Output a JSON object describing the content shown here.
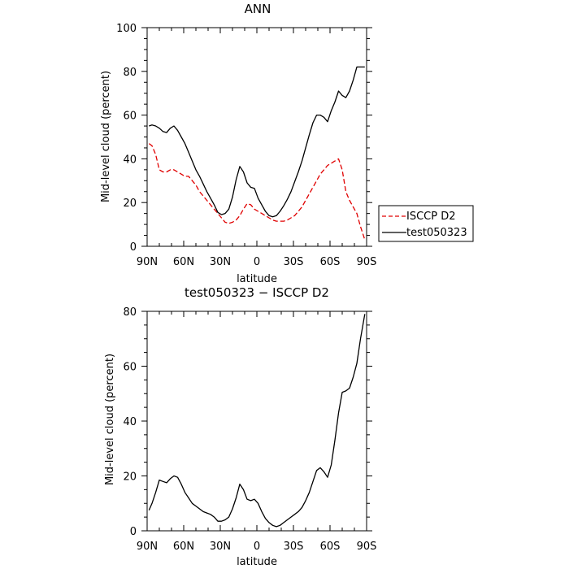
{
  "chart_data": [
    {
      "type": "line",
      "title": "ANN",
      "xlabel": "latitude",
      "ylabel": "Mid-level cloud (percent)",
      "xlim": [
        90,
        -90
      ],
      "ylim": [
        0,
        100
      ],
      "x_ticks": [
        90,
        60,
        30,
        0,
        -30,
        -60,
        -90
      ],
      "x_tick_labels": [
        "90N",
        "60N",
        "30N",
        "0",
        "30S",
        "60S",
        "90S"
      ],
      "y_ticks": [
        0,
        20,
        40,
        60,
        80,
        100
      ],
      "y_tick_labels": [
        "0",
        "20",
        "40",
        "60",
        "80",
        "100"
      ],
      "legend": "right",
      "series": [
        {
          "name": "ISCCP D2",
          "color": "#e00000",
          "dashed": true,
          "x": [
            88.5,
            86,
            83,
            80,
            77,
            74,
            71,
            68,
            65,
            62,
            59,
            56,
            53,
            50,
            47,
            44,
            41,
            38,
            35,
            32,
            29,
            26,
            23,
            20,
            17,
            14,
            11,
            8,
            5,
            2,
            -1,
            -4,
            -7,
            -10,
            -13,
            -16,
            -19,
            -22,
            -25,
            -28,
            -31,
            -34,
            -37,
            -40,
            -43,
            -46,
            -49,
            -52,
            -55,
            -58,
            -61,
            -64,
            -67,
            -70,
            -73,
            -76,
            -79,
            -82,
            -85,
            -88.5
          ],
          "y": [
            47,
            46,
            42,
            35,
            34,
            34,
            35,
            35,
            34,
            33,
            32,
            32,
            30,
            28,
            25,
            23,
            21,
            19,
            17,
            15,
            13,
            11,
            10.5,
            11,
            12,
            14,
            17,
            19.5,
            19,
            17,
            16,
            15,
            14,
            13,
            12,
            11.5,
            11.5,
            11.5,
            12,
            13,
            14,
            16,
            18,
            21,
            24,
            27,
            30,
            33,
            35,
            37,
            38,
            39,
            40,
            35,
            25,
            21,
            18,
            15,
            9,
            3
          ]
        },
        {
          "name": "test050323",
          "color": "#000000",
          "dashed": false,
          "x": [
            88.5,
            86,
            83,
            80,
            77,
            74,
            71,
            68,
            65,
            62,
            59,
            56,
            53,
            50,
            47,
            44,
            41,
            38,
            35,
            32,
            29,
            26,
            23,
            20,
            17,
            14,
            11,
            8,
            5,
            2,
            -1,
            -4,
            -7,
            -10,
            -13,
            -16,
            -19,
            -22,
            -25,
            -28,
            -31,
            -34,
            -37,
            -40,
            -43,
            -46,
            -49,
            -52,
            -55,
            -58,
            -61,
            -64,
            -67,
            -70,
            -73,
            -76,
            -79,
            -82,
            -85,
            -88.5
          ],
          "y": [
            55,
            55.5,
            55,
            54,
            52.5,
            52,
            54,
            55,
            53,
            50,
            47,
            43,
            39,
            35,
            32,
            28.5,
            25,
            22,
            19,
            15.5,
            14.5,
            15,
            17,
            22.5,
            30.5,
            36.5,
            34,
            29,
            27,
            26.5,
            22,
            19,
            16,
            14,
            13.5,
            14,
            16,
            18.5,
            21.5,
            25,
            29.5,
            34,
            39,
            45,
            51,
            56.5,
            60,
            60,
            59,
            57,
            62,
            66,
            71,
            69,
            68,
            71,
            76,
            82,
            82,
            82
          ]
        }
      ]
    },
    {
      "type": "line",
      "title": "test050323 − ISCCP D2",
      "xlabel": "latitude",
      "ylabel": "Mid-level cloud (percent)",
      "xlim": [
        90,
        -90
      ],
      "ylim": [
        0,
        80
      ],
      "x_ticks": [
        90,
        60,
        30,
        0,
        -30,
        -60,
        -90
      ],
      "x_tick_labels": [
        "90N",
        "60N",
        "30N",
        "0",
        "30S",
        "60S",
        "90S"
      ],
      "y_ticks": [
        0,
        20,
        40,
        60,
        80
      ],
      "y_tick_labels": [
        "0",
        "20",
        "40",
        "60",
        "80"
      ],
      "series": [
        {
          "color": "#000000",
          "dashed": false,
          "x": [
            88.5,
            86,
            83,
            80,
            77,
            74,
            71,
            68,
            65,
            62,
            59,
            56,
            53,
            50,
            47,
            44,
            41,
            38,
            35,
            32,
            29,
            26,
            23,
            20,
            17,
            14,
            11,
            8,
            5,
            2,
            -1,
            -4,
            -7,
            -10,
            -13,
            -16,
            -19,
            -22,
            -25,
            -28,
            -31,
            -34,
            -37,
            -40,
            -43,
            -46,
            -49,
            -52,
            -55,
            -58,
            -61,
            -64,
            -67,
            -70,
            -73,
            -76,
            -79,
            -82,
            -85,
            -88.5
          ],
          "y": [
            7.5,
            10,
            14,
            18.5,
            18,
            17.5,
            19,
            20,
            19.5,
            17,
            14,
            12,
            10,
            9,
            8,
            7,
            6.5,
            6,
            5,
            3.5,
            3.5,
            4,
            5,
            8,
            12,
            17,
            15,
            11.5,
            11,
            11.5,
            10,
            7,
            4.5,
            3,
            2,
            1.5,
            2,
            3,
            4,
            5,
            6,
            7,
            8.5,
            11,
            14,
            18,
            22,
            23,
            21.5,
            19.5,
            24,
            33,
            43,
            50.5,
            51,
            52,
            56,
            61,
            70,
            79
          ]
        }
      ]
    }
  ]
}
